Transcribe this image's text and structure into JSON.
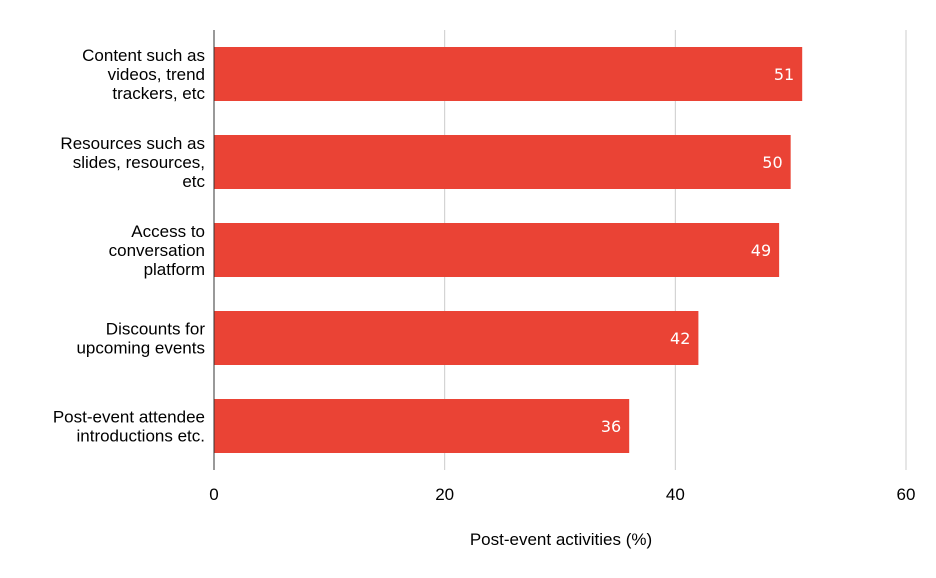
{
  "chart_data": {
    "type": "bar",
    "orientation": "horizontal",
    "categories": [
      "Content such as videos, trend trackers, etc",
      "Resources such as slides, resources, etc",
      "Access to conversation platform",
      "Discounts for upcoming events",
      "Post-event attendee introductions etc."
    ],
    "category_label_lines": [
      [
        "Content such as",
        "videos, trend",
        "trackers, etc"
      ],
      [
        "Resources such as",
        "slides, resources,",
        "etc"
      ],
      [
        "Access to",
        "conversation",
        "platform"
      ],
      [
        "Discounts for",
        "upcoming events"
      ],
      [
        "Post-event attendee",
        "introductions etc."
      ]
    ],
    "values": [
      51,
      50,
      49,
      42,
      36
    ],
    "value_labels": [
      "51",
      "50",
      "49",
      "42",
      "36"
    ],
    "title": "",
    "xlabel": "Post-event activities (%)",
    "ylabel": "",
    "xlim": [
      0,
      60
    ],
    "xticks": [
      0,
      20,
      40,
      60
    ],
    "xtick_labels": [
      "0",
      "20",
      "40",
      "60"
    ],
    "grid": true,
    "legend": "none",
    "colors": {
      "bar": "#ea4335",
      "grid": "#cccccc",
      "axis": "#333333"
    }
  }
}
